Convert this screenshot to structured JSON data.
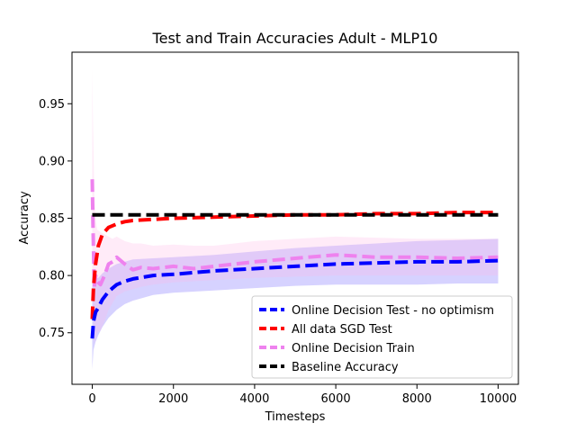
{
  "chart_data": {
    "type": "line",
    "title": "Test and Train Accuracies Adult - MLP10",
    "xlabel": "Timesteps",
    "ylabel": "Accuracy",
    "xlim": [
      -500,
      10500
    ],
    "ylim": [
      0.705,
      0.995
    ],
    "xticks": [
      0,
      2000,
      4000,
      6000,
      8000,
      10000
    ],
    "yticks": [
      0.75,
      0.8,
      0.85,
      0.9,
      0.95
    ],
    "xtick_labels": [
      "0",
      "2000",
      "4000",
      "6000",
      "8000",
      "10000"
    ],
    "ytick_labels": [
      "0.75",
      "0.80",
      "0.85",
      "0.90",
      "0.95"
    ],
    "grid": false,
    "legend_position": "lower right",
    "series": [
      {
        "name": "Online Decision Test - no optimism",
        "color": "#0000ff",
        "style": "dashed",
        "x": [
          0,
          30,
          80,
          150,
          250,
          400,
          600,
          800,
          1000,
          1500,
          2000,
          3000,
          4000,
          5000,
          6000,
          7000,
          8000,
          9000,
          10000
        ],
        "y": [
          0.745,
          0.76,
          0.768,
          0.772,
          0.779,
          0.786,
          0.792,
          0.795,
          0.797,
          0.8,
          0.801,
          0.804,
          0.806,
          0.808,
          0.81,
          0.811,
          0.812,
          0.812,
          0.813
        ],
        "band": {
          "color": "#6a5cff",
          "upper": [
            0.8,
            0.8,
            0.798,
            0.798,
            0.802,
            0.806,
            0.81,
            0.812,
            0.814,
            0.815,
            0.816,
            0.818,
            0.821,
            0.824,
            0.826,
            0.828,
            0.83,
            0.831,
            0.832
          ],
          "lower": [
            0.718,
            0.735,
            0.742,
            0.748,
            0.755,
            0.763,
            0.77,
            0.775,
            0.778,
            0.783,
            0.785,
            0.787,
            0.789,
            0.791,
            0.792,
            0.792,
            0.792,
            0.793,
            0.793
          ]
        }
      },
      {
        "name": "All data SGD Test",
        "color": "#ff0000",
        "style": "dashed",
        "x": [
          0,
          30,
          80,
          150,
          250,
          400,
          600,
          800,
          1000,
          1500,
          2000,
          3000,
          4000,
          5000,
          6000,
          7000,
          8000,
          9000,
          10000
        ],
        "y": [
          0.762,
          0.79,
          0.81,
          0.826,
          0.836,
          0.842,
          0.845,
          0.847,
          0.848,
          0.849,
          0.85,
          0.851,
          0.852,
          0.853,
          0.853,
          0.854,
          0.854,
          0.855,
          0.855
        ],
        "band": null
      },
      {
        "name": "Online Decision Train",
        "color": "#ee82ee",
        "style": "dashed",
        "x": [
          0,
          20,
          50,
          80,
          120,
          200,
          300,
          400,
          500,
          600,
          800,
          1000,
          1200,
          1500,
          2000,
          2500,
          3000,
          3500,
          4000,
          5000,
          6000,
          7000,
          8000,
          9000,
          10000
        ],
        "y": [
          0.884,
          0.84,
          0.79,
          0.8,
          0.795,
          0.792,
          0.8,
          0.81,
          0.812,
          0.816,
          0.81,
          0.805,
          0.807,
          0.806,
          0.808,
          0.806,
          0.808,
          0.81,
          0.812,
          0.815,
          0.818,
          0.816,
          0.816,
          0.815,
          0.816
        ],
        "band": {
          "color": "#ffb6e6",
          "upper": [
            0.98,
            0.93,
            0.87,
            0.85,
            0.84,
            0.838,
            0.836,
            0.834,
            0.832,
            0.834,
            0.83,
            0.828,
            0.828,
            0.826,
            0.827,
            0.826,
            0.826,
            0.828,
            0.83,
            0.832,
            0.834,
            0.833,
            0.832,
            0.832,
            0.832
          ],
          "lower": [
            0.79,
            0.76,
            0.74,
            0.745,
            0.75,
            0.752,
            0.76,
            0.77,
            0.776,
            0.782,
            0.786,
            0.788,
            0.79,
            0.792,
            0.794,
            0.795,
            0.796,
            0.797,
            0.798,
            0.799,
            0.8,
            0.8,
            0.8,
            0.8,
            0.8
          ]
        }
      },
      {
        "name": "Baseline Accuracy",
        "color": "#000000",
        "style": "dashed",
        "x": [
          0,
          10000
        ],
        "y": [
          0.853,
          0.853
        ],
        "band": null
      }
    ]
  }
}
